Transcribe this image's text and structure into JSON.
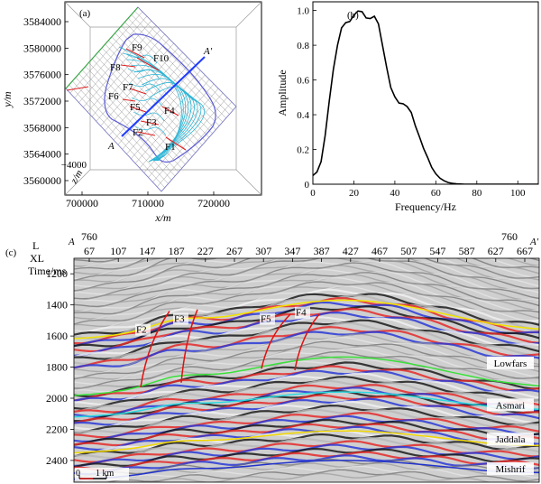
{
  "panel_a": {
    "label": "(a)",
    "ylabel": "y/m",
    "xlabel": "x/m",
    "zlabel": "z/m",
    "z_tick": "−4000",
    "y_ticks": [
      "3584000",
      "3580000",
      "3576000",
      "3572000",
      "3568000",
      "3564000",
      "3560000"
    ],
    "x_ticks": [
      "700000",
      "710000",
      "720000"
    ],
    "line_start": "A",
    "line_end": "A′",
    "faults": [
      "F9",
      "F8",
      "F10",
      "F7",
      "F6",
      "F5",
      "F4",
      "F3",
      "F2",
      "F1"
    ],
    "colors": {
      "survey_outline": "#5b5bd6",
      "contours": "#2ab5d6",
      "faults": "#e02020",
      "section_line": "#1f3cff",
      "grid_edge": "#3aa845",
      "fault_left": "#e03030"
    }
  },
  "panel_b": {
    "label": "(b)",
    "chart_data": {
      "type": "line",
      "xlabel": "Frequency/Hz",
      "ylabel": "Amplitude",
      "xlim": [
        0,
        110
      ],
      "ylim": [
        0,
        1.05
      ],
      "x_ticks": [
        "0",
        "20",
        "40",
        "60",
        "80",
        "100"
      ],
      "y_ticks": [
        "0",
        "0.2",
        "0.4",
        "0.6",
        "0.8",
        "1.0"
      ],
      "x": [
        0,
        2,
        4,
        6,
        8,
        10,
        12,
        14,
        16,
        18,
        20,
        22,
        24,
        26,
        28,
        30,
        32,
        34,
        36,
        38,
        40,
        42,
        44,
        46,
        48,
        50,
        52,
        54,
        56,
        58,
        60,
        62,
        64,
        66,
        68,
        70,
        72,
        74,
        76,
        78,
        80,
        84,
        88,
        92,
        96,
        100,
        105,
        110
      ],
      "y": [
        0.05,
        0.07,
        0.13,
        0.28,
        0.48,
        0.66,
        0.8,
        0.9,
        0.93,
        0.94,
        0.97,
        1.0,
        0.99,
        0.96,
        0.95,
        0.97,
        0.92,
        0.8,
        0.67,
        0.56,
        0.5,
        0.47,
        0.46,
        0.45,
        0.41,
        0.34,
        0.27,
        0.21,
        0.15,
        0.1,
        0.06,
        0.035,
        0.02,
        0.01,
        0.005,
        0.002,
        0.001,
        0,
        0,
        0,
        0,
        0,
        0,
        0,
        0,
        0,
        0,
        0
      ],
      "line_color": "#000000"
    }
  },
  "panel_c": {
    "label": "(c)",
    "row_labels": {
      "l": "L",
      "xl": "XL",
      "time": "Time/ms"
    },
    "l_start": "760",
    "l_end": "760",
    "line_start": "A",
    "line_end": "A′",
    "xl_ticks": [
      "67",
      "107",
      "147",
      "187",
      "227",
      "267",
      "307",
      "347",
      "387",
      "427",
      "467",
      "507",
      "547",
      "587",
      "627",
      "667"
    ],
    "time_ticks": [
      "1200",
      "1400",
      "1600",
      "1800",
      "2000",
      "2200",
      "2400"
    ],
    "time_range": [
      1100,
      2540
    ],
    "horizons": [
      {
        "name": "Lowfars",
        "color": "#f2e300"
      },
      {
        "name": "Asmari",
        "color": "#2bd9e0"
      },
      {
        "name": "Jaddala",
        "color": "#f2d800"
      },
      {
        "name": "Mishrif",
        "color": "#2233cc"
      }
    ],
    "green_horizon_color": "#3ae03a",
    "faults": [
      "F2",
      "F3",
      "F5",
      "F4"
    ],
    "fault_color": "#e01010",
    "scale_bar": {
      "zero": "0",
      "label": "1 km"
    }
  }
}
